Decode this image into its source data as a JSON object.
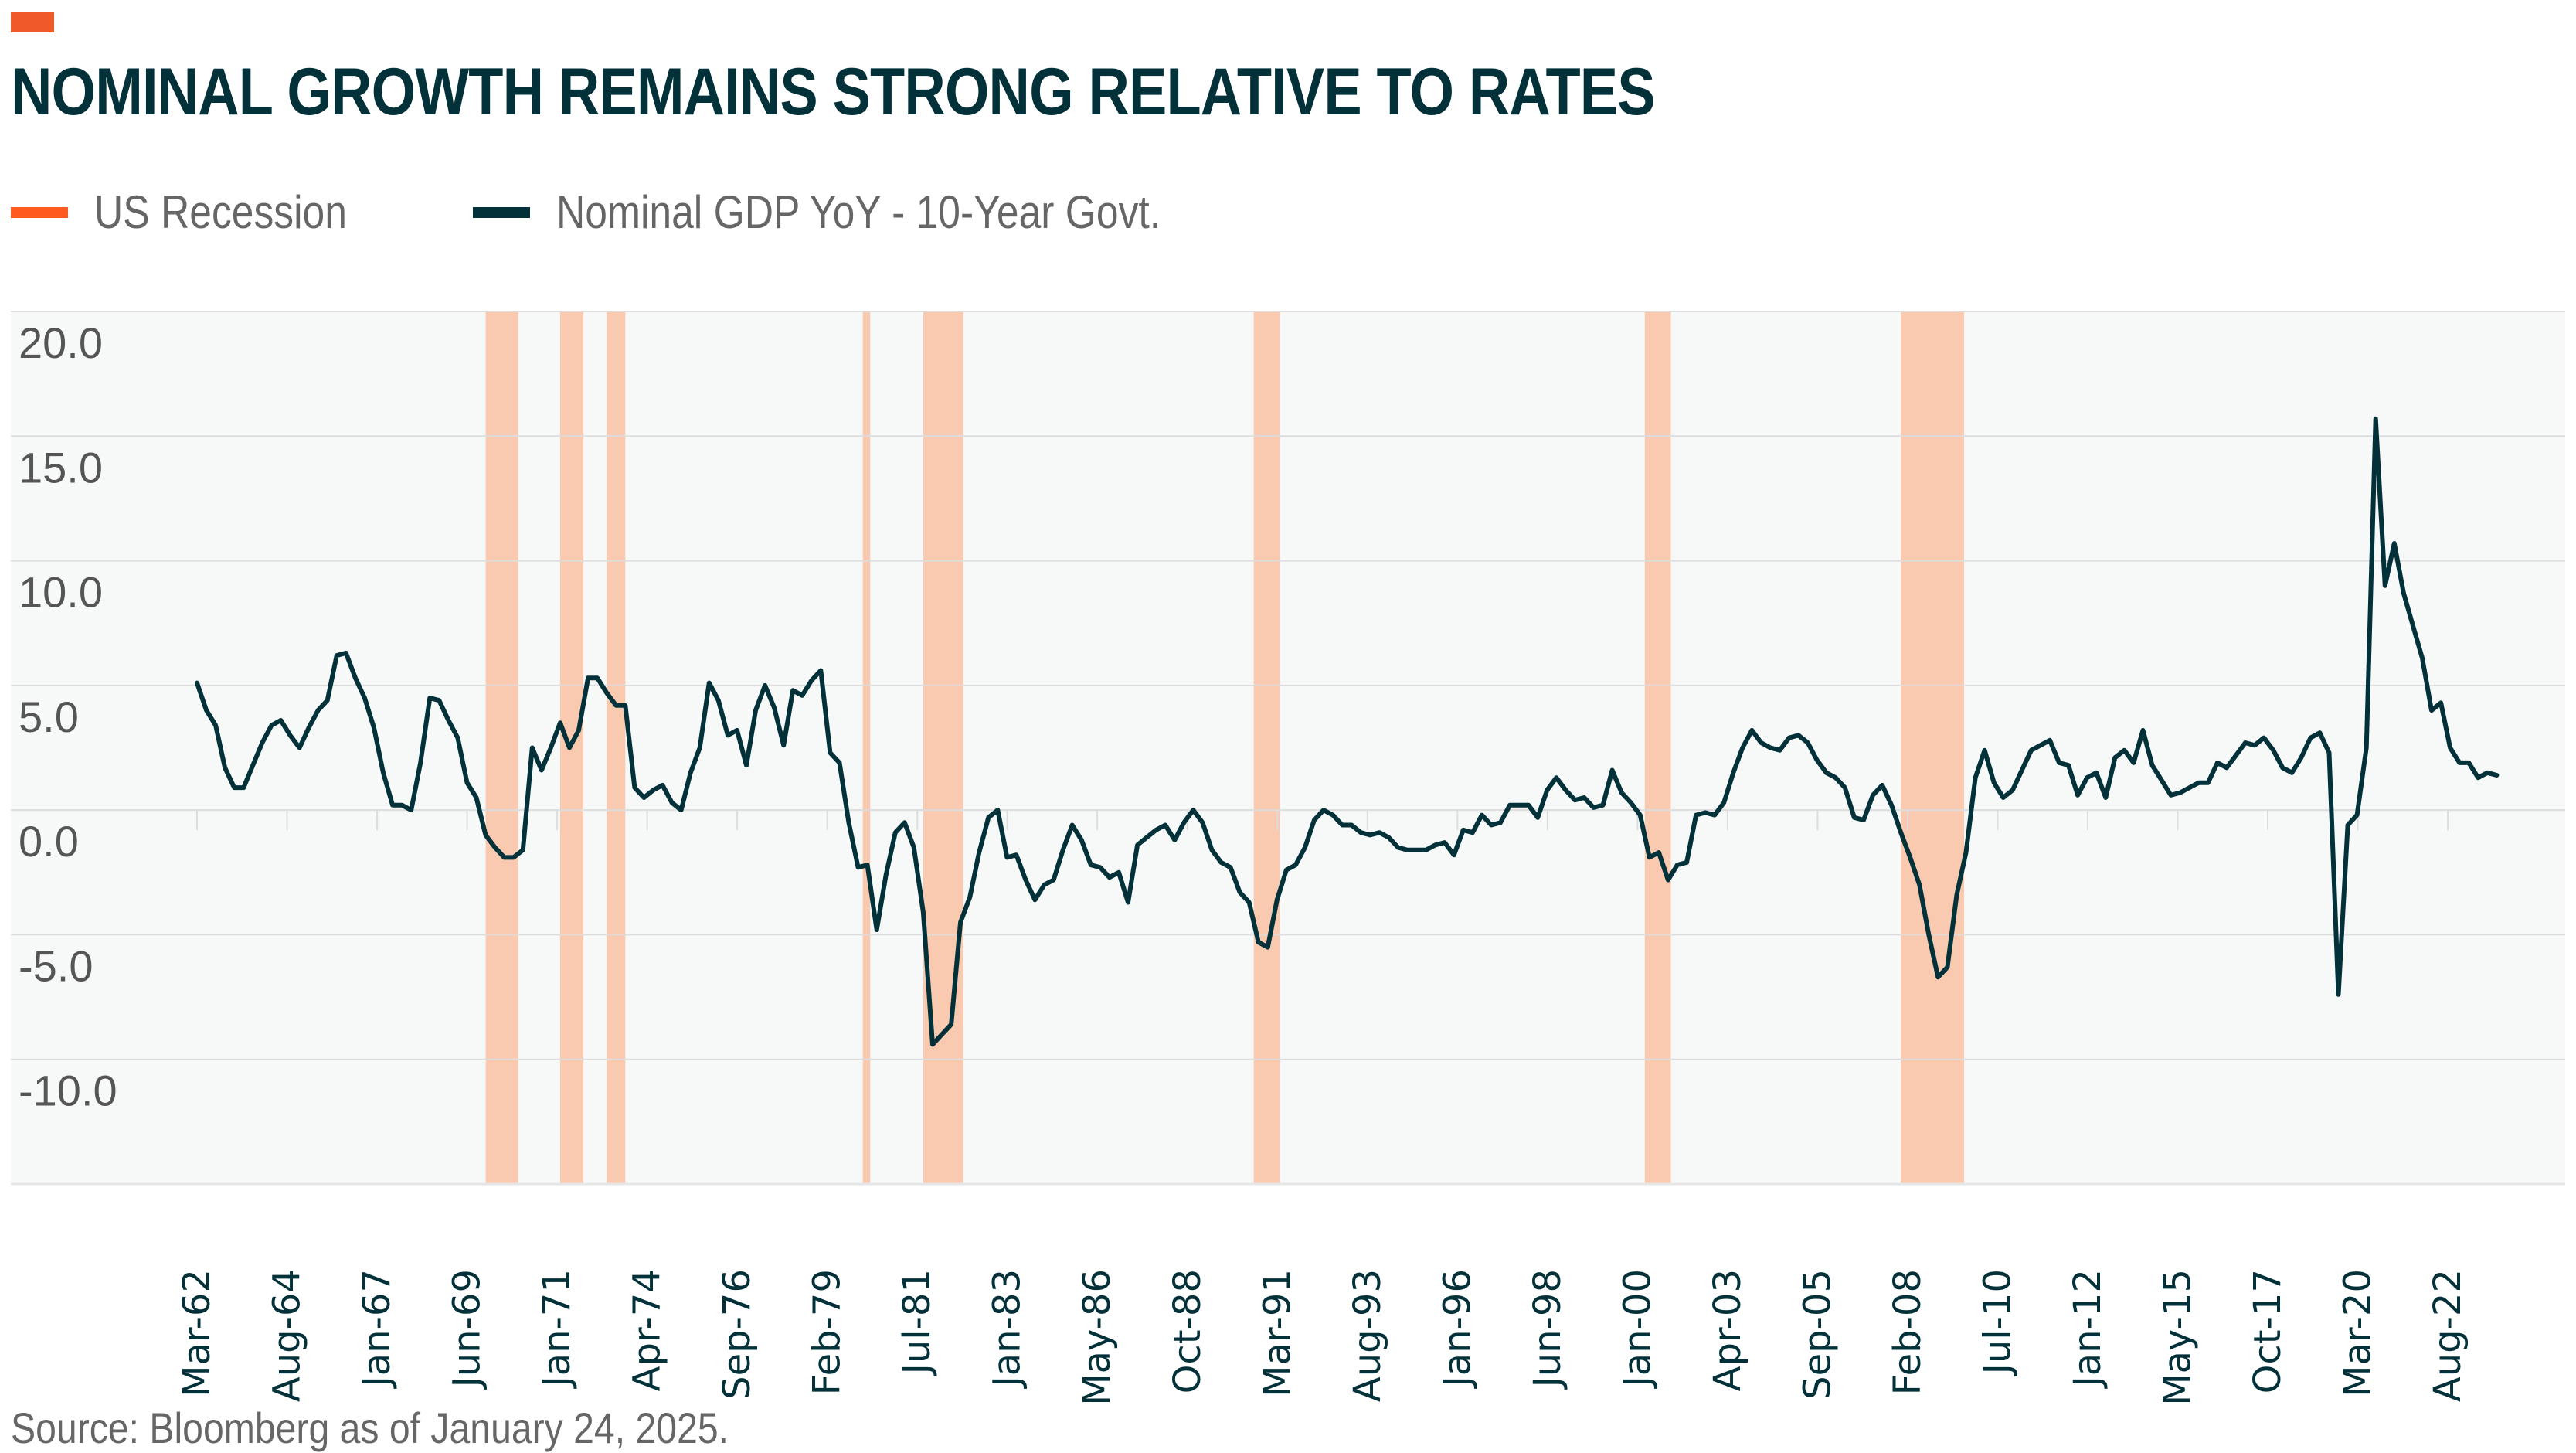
{
  "header": {
    "title": "NOMINAL GROWTH REMAINS STRONG RELATIVE TO RATES",
    "accent_color": "#F05A28"
  },
  "legend": [
    {
      "label": "US Recession",
      "color": "#FF5A1F",
      "icon": "recession-swatch"
    },
    {
      "label": "Nominal GDP YoY - 10-Year Govt.",
      "color": "#03313A",
      "icon": "line-swatch"
    }
  ],
  "footer": {
    "source": "Source: Bloomberg as of January 24, 2025."
  },
  "chart_data": {
    "type": "line",
    "title": "NOMINAL GROWTH REMAINS STRONG RELATIVE TO RATES",
    "xlabel": "",
    "ylabel": "",
    "ylim": [
      -15,
      20
    ],
    "y_ticks": [
      20.0,
      15.0,
      10.0,
      5.0,
      0.0,
      -5.0,
      -10.0
    ],
    "y_tick_labels": [
      "20.0",
      "15.0",
      "10.0",
      "5.0",
      "0.0",
      "-5.0",
      "-10.0"
    ],
    "grid": true,
    "legend_position": "top-left",
    "x_start": "Mar-62",
    "frequency": "quarterly",
    "x_tick_every_quarters": 9.67,
    "x_tick_labels": [
      "Mar-62",
      "Aug-64",
      "Jan-67",
      "Jun-69",
      "Jan-71",
      "Apr-74",
      "Sep-76",
      "Feb-79",
      "Jul-81",
      "Jan-83",
      "May-86",
      "Oct-88",
      "Mar-91",
      "Aug-93",
      "Jan-96",
      "Jun-98",
      "Jan-00",
      "Apr-03",
      "Sep-05",
      "Feb-08",
      "Jul-10",
      "Jan-12",
      "May-15",
      "Oct-17",
      "Mar-20",
      "Aug-22"
    ],
    "recessions": [
      {
        "start_q": 31.0,
        "end_q": 34.5
      },
      {
        "start_q": 39.0,
        "end_q": 41.5,
        "note": "sub-band"
      },
      {
        "start_q": 44.0,
        "end_q": 46.0
      },
      {
        "start_q": 71.5,
        "end_q": 72.3
      },
      {
        "start_q": 78.0,
        "end_q": 82.3
      },
      {
        "start_q": 113.5,
        "end_q": 116.3
      },
      {
        "start_q": 155.5,
        "end_q": 158.3
      },
      {
        "start_q": 183.0,
        "end_q": 189.8
      }
    ],
    "series": [
      {
        "name": "Nominal GDP YoY - 10-Year Govt.",
        "color": "#03313A",
        "values": [
          5.1,
          4.0,
          3.4,
          1.7,
          0.9,
          0.9,
          1.8,
          2.7,
          3.4,
          3.6,
          3.0,
          2.5,
          3.3,
          4.0,
          4.4,
          6.2,
          6.3,
          5.3,
          4.5,
          3.3,
          1.5,
          0.2,
          0.2,
          0.0,
          1.9,
          4.5,
          4.4,
          3.6,
          2.9,
          1.1,
          0.5,
          -1.0,
          -1.5,
          -1.9,
          -1.9,
          -1.6,
          2.5,
          1.6,
          2.5,
          3.5,
          2.5,
          3.2,
          5.3,
          5.3,
          4.7,
          4.2,
          4.2,
          0.9,
          0.5,
          0.8,
          1.0,
          0.3,
          0.0,
          1.5,
          2.5,
          5.1,
          4.4,
          3.0,
          3.2,
          1.8,
          4.0,
          5.0,
          4.1,
          2.6,
          4.8,
          4.6,
          5.2,
          5.6,
          2.3,
          1.9,
          -0.5,
          -2.3,
          -2.2,
          -4.8,
          -2.6,
          -0.9,
          -0.5,
          -1.5,
          -4.1,
          -9.4,
          -9.0,
          -8.6,
          -4.5,
          -3.5,
          -1.7,
          -0.3,
          0.0,
          -1.9,
          -1.8,
          -2.8,
          -3.6,
          -3.0,
          -2.8,
          -1.6,
          -0.6,
          -1.2,
          -2.2,
          -2.3,
          -2.7,
          -2.5,
          -3.7,
          -1.4,
          -1.1,
          -0.8,
          -0.6,
          -1.2,
          -0.5,
          0.0,
          -0.5,
          -1.6,
          -2.1,
          -2.3,
          -3.3,
          -3.7,
          -5.3,
          -5.5,
          -3.6,
          -2.4,
          -2.2,
          -1.5,
          -0.4,
          0.0,
          -0.2,
          -0.6,
          -0.6,
          -0.9,
          -1.0,
          -0.9,
          -1.1,
          -1.5,
          -1.6,
          -1.6,
          -1.6,
          -1.4,
          -1.3,
          -1.8,
          -0.8,
          -0.9,
          -0.2,
          -0.6,
          -0.5,
          0.2,
          0.2,
          0.2,
          -0.3,
          0.8,
          1.3,
          0.8,
          0.4,
          0.5,
          0.1,
          0.2,
          1.6,
          0.7,
          0.3,
          -0.2,
          -1.9,
          -1.7,
          -2.8,
          -2.2,
          -2.1,
          -0.2,
          -0.1,
          -0.2,
          0.3,
          1.5,
          2.5,
          3.2,
          2.7,
          2.5,
          2.4,
          2.9,
          3.0,
          2.7,
          2.0,
          1.5,
          1.3,
          0.9,
          -0.3,
          -0.4,
          0.6,
          1.0,
          0.2,
          -0.9,
          -1.9,
          -3.0,
          -5.0,
          -6.7,
          -6.3,
          -3.4,
          -1.7,
          1.3,
          2.4,
          1.1,
          0.5,
          0.8,
          1.6,
          2.4,
          2.6,
          2.8,
          1.9,
          1.8,
          0.6,
          1.3,
          1.5,
          0.5,
          2.1,
          2.4,
          1.9,
          3.2,
          1.8,
          1.2,
          0.6,
          0.7,
          0.9,
          1.1,
          1.1,
          1.9,
          1.7,
          2.2,
          2.7,
          2.6,
          2.9,
          2.4,
          1.7,
          1.5,
          2.1,
          2.9,
          3.1,
          2.3,
          -7.4,
          -0.6,
          -0.2,
          2.5,
          15.7,
          9.0,
          10.7,
          8.7,
          7.4,
          6.1,
          4.0,
          4.3,
          2.5,
          1.9,
          1.9,
          1.3,
          1.5,
          1.4
        ]
      }
    ]
  }
}
